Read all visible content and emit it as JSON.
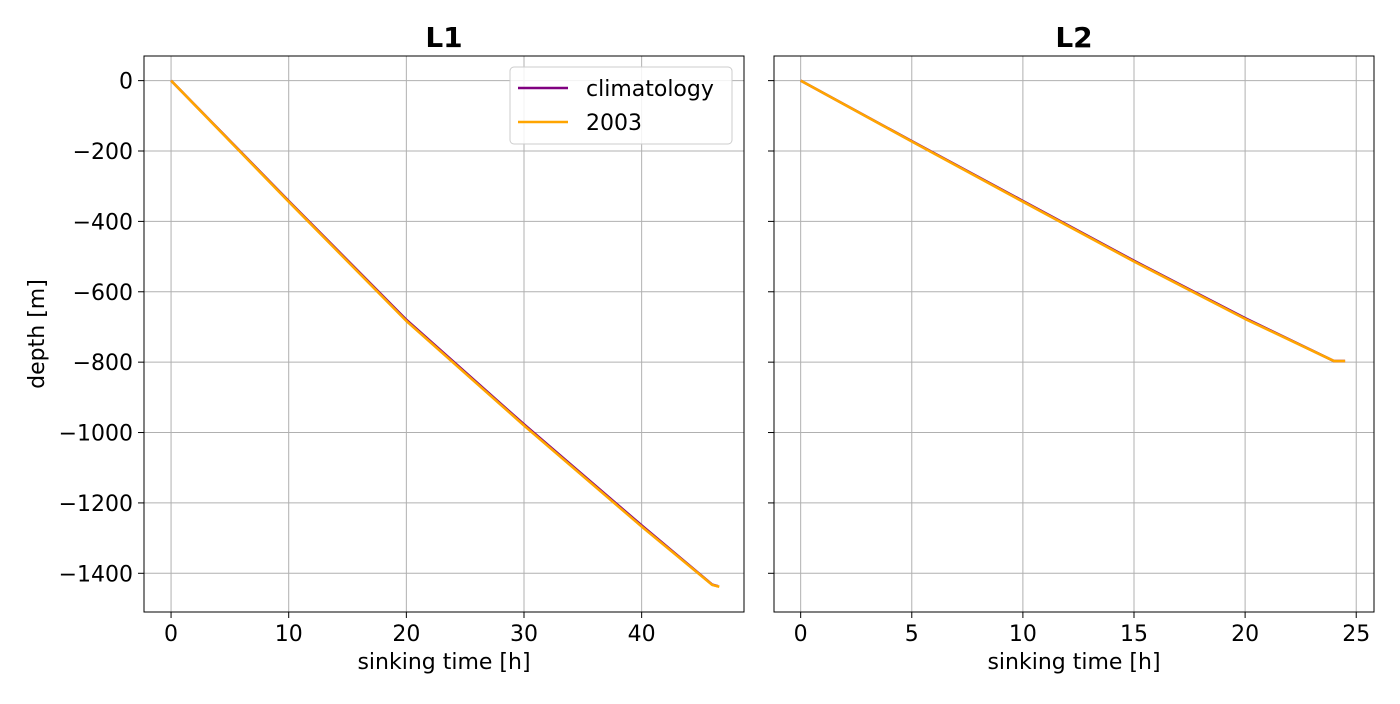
{
  "chart_data": [
    {
      "type": "line",
      "title": "L1",
      "xlabel": "sinking time [h]",
      "ylabel": "depth [m]",
      "xlim": [
        -2.3,
        48.7
      ],
      "ylim": [
        -1510,
        70
      ],
      "xticks": [
        0,
        10,
        20,
        30,
        40
      ],
      "yticks": [
        0,
        -200,
        -400,
        -600,
        -800,
        -1000,
        -1200,
        -1400
      ],
      "grid": true,
      "legend": "top-right",
      "series": [
        {
          "name": "climatology",
          "color": "#800080",
          "x": [
            0,
            10,
            20,
            30,
            40,
            46.0,
            46.5
          ],
          "y": [
            0,
            -342,
            -680,
            -977,
            -1264,
            -1432,
            -1437
          ]
        },
        {
          "name": "2003",
          "color": "#FFA500",
          "x": [
            0,
            10,
            20,
            30,
            40,
            46.0,
            46.6
          ],
          "y": [
            0,
            -344,
            -683,
            -980,
            -1267,
            -1433,
            -1438
          ]
        }
      ]
    },
    {
      "type": "line",
      "title": "L2",
      "xlabel": "sinking time [h]",
      "ylabel": "",
      "xlim": [
        -1.2,
        25.8
      ],
      "ylim": [
        -1510,
        70
      ],
      "xticks": [
        0,
        5,
        10,
        15,
        20,
        25
      ],
      "yticks": [
        0,
        -200,
        -400,
        -600,
        -800,
        -1000,
        -1200,
        -1400
      ],
      "hide_ytick_labels": true,
      "grid": true,
      "series": [
        {
          "name": "climatology",
          "color": "#800080",
          "x": [
            0,
            5,
            10,
            15,
            20,
            24.0,
            24.5
          ],
          "y": [
            0,
            -172,
            -342,
            -512,
            -675,
            -797,
            -797
          ]
        },
        {
          "name": "2003",
          "color": "#FFA500",
          "x": [
            0,
            5,
            10,
            15,
            20,
            24.0,
            24.5
          ],
          "y": [
            0,
            -173,
            -344,
            -514,
            -677,
            -797,
            -797
          ]
        }
      ]
    }
  ]
}
